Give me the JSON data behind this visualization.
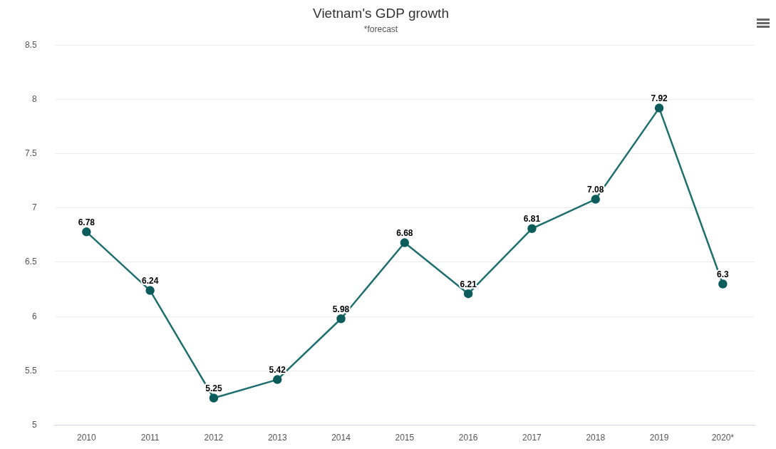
{
  "chart_data": {
    "type": "line",
    "title": "Vietnam's GDP growth",
    "subtitle": "*forecast",
    "categories": [
      "2010",
      "2011",
      "2012",
      "2013",
      "2014",
      "2015",
      "2016",
      "2017",
      "2018",
      "2019",
      "2020*"
    ],
    "series": [
      {
        "color": "#1f6f6f",
        "values": [
          6.78,
          6.24,
          5.25,
          5.42,
          5.98,
          6.68,
          6.21,
          6.81,
          7.08,
          7.92,
          6.3
        ]
      }
    ],
    "ylim": [
      5,
      8.5
    ],
    "yticks": [
      5,
      5.5,
      6,
      6.5,
      7,
      7.5,
      8,
      8.5
    ],
    "grid": "y",
    "legend": false,
    "marker": "circle",
    "line_style": "solid",
    "data_labels": true
  }
}
